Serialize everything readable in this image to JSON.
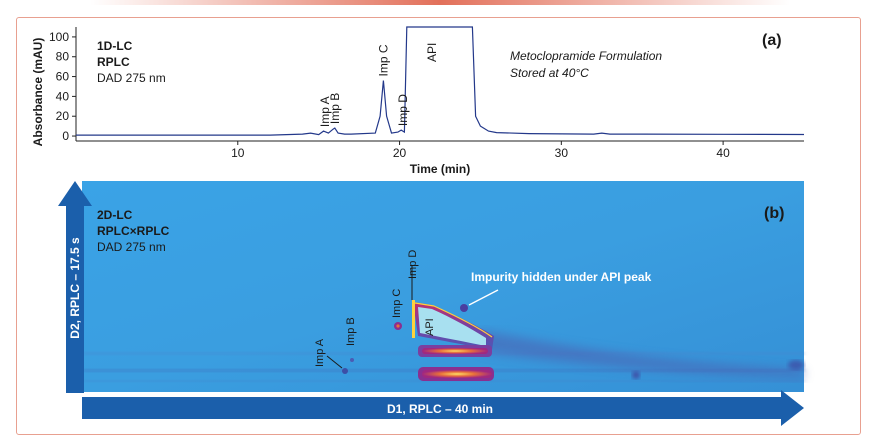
{
  "chart_data": [
    {
      "type": "line",
      "panel_label": "(a)",
      "method_lines": [
        "1D-LC",
        "RPLC",
        "DAD 275 nm"
      ],
      "sample_lines": [
        "Metoclopramide Formulation",
        "Stored at 40°C"
      ],
      "xlabel": "Time (min)",
      "ylabel": "Absorbance (mAU)",
      "xlim": [
        0,
        45
      ],
      "ylim": [
        -5,
        110
      ],
      "x_ticks": [
        10,
        20,
        30,
        40
      ],
      "y_ticks": [
        0,
        20,
        40,
        60,
        80,
        100
      ],
      "peaks": [
        {
          "label": "Imp A",
          "x": 15.4,
          "y": 5
        },
        {
          "label": "Imp B",
          "x": 16.0,
          "y": 8
        },
        {
          "label": "Imp C",
          "x": 19.0,
          "y": 56
        },
        {
          "label": "Imp D",
          "x": 20.2,
          "y": 6
        },
        {
          "label": "API",
          "x": 22.0,
          "y": 110
        }
      ],
      "series": [
        {
          "x": [
            0,
            12,
            14,
            14.5,
            15,
            15.3,
            15.6,
            15.9,
            16.0,
            16.2,
            16.6,
            17,
            18.5,
            18.8,
            19.0,
            19.2,
            19.5,
            19.9,
            20.1,
            20.3,
            20.45,
            20.6,
            24.5,
            24.7,
            25,
            25.5,
            26,
            28,
            30,
            32,
            32.5,
            33,
            35,
            40,
            45
          ],
          "y": [
            1,
            1,
            2,
            3,
            1.5,
            5,
            3,
            7,
            8,
            3,
            2,
            2,
            3,
            20,
            56,
            20,
            3,
            4,
            6,
            4,
            110,
            110,
            110,
            20,
            10,
            5,
            3.5,
            2.5,
            2.2,
            2,
            3,
            2,
            2,
            1.8,
            1.6
          ]
        }
      ]
    },
    {
      "type": "heatmap",
      "panel_label": "(b)",
      "method_lines": [
        "2D-LC",
        "RPLC×RPLC",
        "DAD 275 nm"
      ],
      "xlabel": "D1, RPLC – 40 min",
      "ylabel": "D2, RPLC – 17.5 s",
      "annotation": "Impurity hidden under API peak",
      "spot_labels": [
        "Imp A",
        "Imp B",
        "Imp C",
        "Imp D",
        "API"
      ],
      "colors": {
        "background": "#3a9ee0",
        "band": "#5a6fb5",
        "hot": "#c8286e",
        "peak": "#ffd23c",
        "core": "#a8e0f0"
      }
    }
  ]
}
